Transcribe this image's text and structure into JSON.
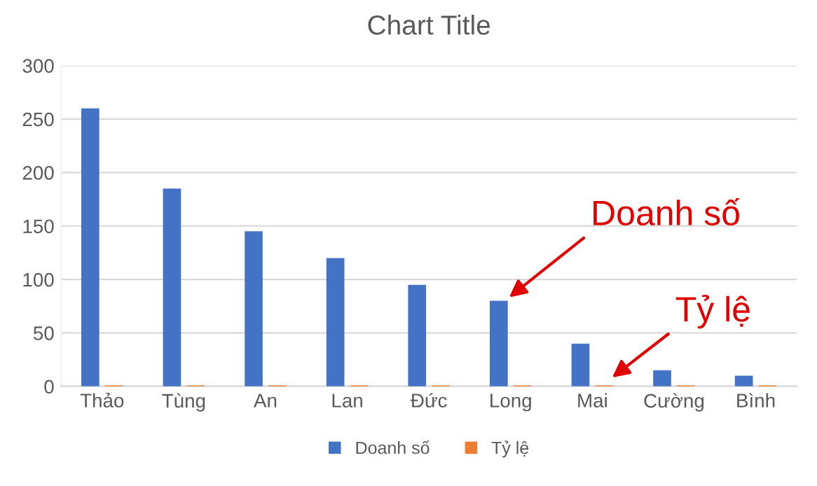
{
  "chart_data": {
    "type": "bar",
    "title": "Chart Title",
    "categories": [
      "Thảo",
      "Tùng",
      "An",
      "Lan",
      "Đức",
      "Long",
      "Mai",
      "Cường",
      "Bình"
    ],
    "series": [
      {
        "name": "Doanh số",
        "color": "#4472c4",
        "values": [
          260,
          185,
          145,
          120,
          95,
          80,
          40,
          15,
          10
        ]
      },
      {
        "name": "Tỷ lệ",
        "color": "#ed7d31",
        "values": [
          1,
          1,
          1,
          1,
          1,
          1,
          1,
          1,
          1
        ]
      }
    ],
    "ylim": [
      0,
      300
    ],
    "yticks": [
      0,
      50,
      100,
      150,
      200,
      250,
      300
    ],
    "grid": "y",
    "legend": "bottom",
    "annotations": [
      "Doanh số",
      "Tỷ lệ"
    ]
  }
}
